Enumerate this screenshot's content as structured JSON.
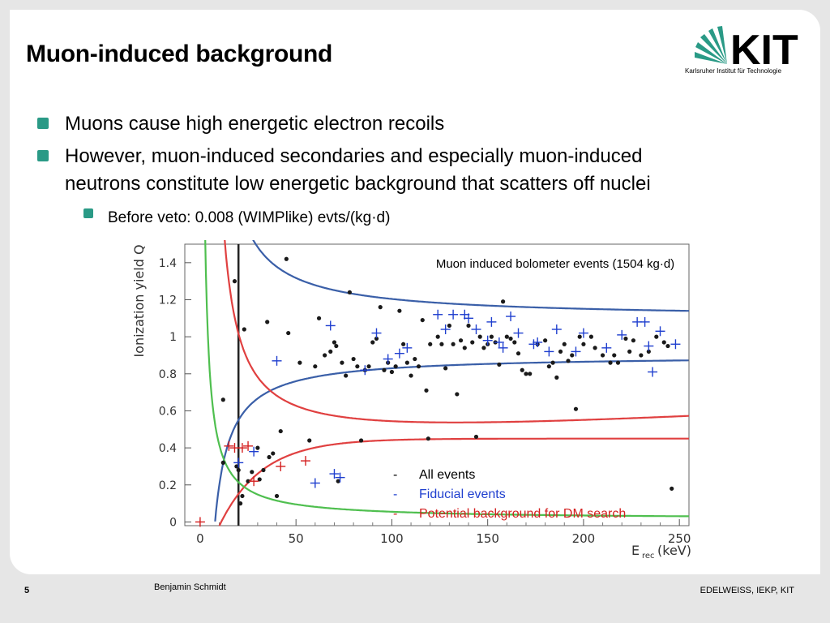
{
  "slide": {
    "title": "Muon-induced background",
    "bullets": [
      "Muons cause high energetic electron recoils",
      "However, muon-induced secondaries and especially muon-induced",
      "neutrons constitute low energetic background that scatters off nuclei"
    ],
    "sub_bullet": "Before veto: 0.008 (WIMPlike) evts/(kg·d)",
    "logo": {
      "text": "KIT",
      "subtitle": "Karlsruher Institut für Technologie",
      "color": "#2a9a86"
    },
    "footer": {
      "page": "5",
      "author": "Benjamin Schmidt",
      "affiliation": "EDELWEISS, IEKP, KIT"
    },
    "accent_color": "#2a9a86"
  },
  "chart_data": {
    "type": "scatter",
    "title": "Muon induced bolometer events (1504 kg·d)",
    "xlabel": "E",
    "xlabel_sub": "rec",
    "xlabel_unit": "(keV)",
    "ylabel": "Ionization yield Q",
    "xlim": [
      -8,
      255
    ],
    "ylim": [
      -0.02,
      1.5
    ],
    "x_ticks": [
      0,
      50,
      100,
      150,
      200,
      250
    ],
    "y_ticks": [
      0,
      0.2,
      0.4,
      0.6,
      0.8,
      1,
      1.2,
      1.4
    ],
    "y_tick_labels": [
      "0",
      "0.2",
      "0.4",
      "0.6",
      "0.8",
      "1",
      "1.2",
      "1.4"
    ],
    "threshold_x": 20,
    "legend": [
      {
        "dash": "-",
        "label": "All events",
        "color": "#000000"
      },
      {
        "dash": "-",
        "label": "Fiducial events",
        "color": "#1f3fcf"
      },
      {
        "dash": "-",
        "label": "Potential background for DM search",
        "color": "#d42020"
      }
    ],
    "curves": {
      "blue_upper": "#3a5fa8",
      "blue_lower": "#3a5fa8",
      "red_upper": "#e04040",
      "red_lower": "#e04040",
      "green": "#4fbf4f"
    },
    "series": [
      {
        "name": "All events",
        "color": "#1a1a1a",
        "marker": "dot",
        "points": [
          [
            12,
            0.66
          ],
          [
            12,
            0.32
          ],
          [
            18,
            1.3
          ],
          [
            19,
            0.3
          ],
          [
            20,
            0.28
          ],
          [
            21,
            0.1
          ],
          [
            22,
            0.14
          ],
          [
            23,
            1.04
          ],
          [
            25,
            0.22
          ],
          [
            27,
            0.27
          ],
          [
            30,
            0.4
          ],
          [
            31,
            0.23
          ],
          [
            33,
            0.28
          ],
          [
            35,
            1.08
          ],
          [
            36,
            0.35
          ],
          [
            38,
            0.37
          ],
          [
            40,
            0.14
          ],
          [
            42,
            0.49
          ],
          [
            45,
            1.42
          ],
          [
            46,
            1.02
          ],
          [
            52,
            0.86
          ],
          [
            57,
            0.44
          ],
          [
            60,
            0.84
          ],
          [
            62,
            1.1
          ],
          [
            65,
            0.9
          ],
          [
            68,
            0.92
          ],
          [
            70,
            0.97
          ],
          [
            71,
            0.95
          ],
          [
            72,
            0.22
          ],
          [
            74,
            0.86
          ],
          [
            76,
            0.79
          ],
          [
            78,
            1.24
          ],
          [
            80,
            0.88
          ],
          [
            82,
            0.84
          ],
          [
            84,
            0.44
          ],
          [
            86,
            0.82
          ],
          [
            88,
            0.84
          ],
          [
            90,
            0.97
          ],
          [
            92,
            0.99
          ],
          [
            94,
            1.16
          ],
          [
            96,
            0.82
          ],
          [
            98,
            0.86
          ],
          [
            100,
            0.81
          ],
          [
            102,
            0.84
          ],
          [
            104,
            1.14
          ],
          [
            106,
            0.96
          ],
          [
            108,
            0.86
          ],
          [
            110,
            0.79
          ],
          [
            112,
            0.88
          ],
          [
            114,
            0.84
          ],
          [
            116,
            1.09
          ],
          [
            118,
            0.71
          ],
          [
            119,
            0.45
          ],
          [
            120,
            0.96
          ],
          [
            124,
            1.0
          ],
          [
            126,
            0.96
          ],
          [
            128,
            0.83
          ],
          [
            130,
            1.06
          ],
          [
            132,
            0.96
          ],
          [
            134,
            0.69
          ],
          [
            136,
            0.98
          ],
          [
            138,
            0.94
          ],
          [
            140,
            1.06
          ],
          [
            142,
            0.97
          ],
          [
            144,
            0.46
          ],
          [
            146,
            1.0
          ],
          [
            148,
            0.94
          ],
          [
            150,
            0.96
          ],
          [
            152,
            1.0
          ],
          [
            154,
            0.97
          ],
          [
            156,
            0.85
          ],
          [
            158,
            1.19
          ],
          [
            160,
            1.0
          ],
          [
            162,
            0.99
          ],
          [
            164,
            0.97
          ],
          [
            166,
            0.91
          ],
          [
            168,
            0.82
          ],
          [
            170,
            0.8
          ],
          [
            172,
            0.8
          ],
          [
            176,
            0.96
          ],
          [
            180,
            0.98
          ],
          [
            182,
            0.84
          ],
          [
            184,
            0.86
          ],
          [
            186,
            0.78
          ],
          [
            188,
            0.92
          ],
          [
            190,
            0.96
          ],
          [
            192,
            0.87
          ],
          [
            194,
            0.9
          ],
          [
            196,
            0.61
          ],
          [
            198,
            1.0
          ],
          [
            200,
            0.96
          ],
          [
            204,
            1.0
          ],
          [
            206,
            0.94
          ],
          [
            210,
            0.9
          ],
          [
            214,
            0.86
          ],
          [
            216,
            0.9
          ],
          [
            218,
            0.86
          ],
          [
            222,
            0.99
          ],
          [
            224,
            0.92
          ],
          [
            226,
            0.98
          ],
          [
            230,
            0.9
          ],
          [
            234,
            0.92
          ],
          [
            238,
            1.0
          ],
          [
            242,
            0.97
          ],
          [
            244,
            0.95
          ],
          [
            246,
            0.18
          ]
        ]
      },
      {
        "name": "Fiducial events",
        "color": "#1f3fcf",
        "marker": "plus",
        "points": [
          [
            20,
            0.32
          ],
          [
            28,
            0.38
          ],
          [
            40,
            0.87
          ],
          [
            60,
            0.21
          ],
          [
            68,
            1.06
          ],
          [
            70,
            0.26
          ],
          [
            73,
            0.24
          ],
          [
            86,
            0.82
          ],
          [
            92,
            1.02
          ],
          [
            98,
            0.88
          ],
          [
            104,
            0.91
          ],
          [
            108,
            0.94
          ],
          [
            124,
            1.12
          ],
          [
            132,
            1.12
          ],
          [
            138,
            1.12
          ],
          [
            128,
            1.04
          ],
          [
            140,
            1.1
          ],
          [
            144,
            1.04
          ],
          [
            150,
            0.98
          ],
          [
            152,
            1.08
          ],
          [
            156,
            0.97
          ],
          [
            158,
            0.94
          ],
          [
            162,
            1.11
          ],
          [
            166,
            1.02
          ],
          [
            174,
            0.96
          ],
          [
            176,
            0.97
          ],
          [
            182,
            0.92
          ],
          [
            186,
            1.04
          ],
          [
            196,
            0.92
          ],
          [
            200,
            1.02
          ],
          [
            212,
            0.94
          ],
          [
            220,
            1.01
          ],
          [
            228,
            1.08
          ],
          [
            232,
            1.08
          ],
          [
            234,
            0.95
          ],
          [
            236,
            0.81
          ],
          [
            240,
            1.03
          ],
          [
            248,
            0.96
          ]
        ]
      },
      {
        "name": "Potential background for DM search",
        "color": "#d42020",
        "marker": "plus",
        "points": [
          [
            15,
            0.41
          ],
          [
            18,
            0.4
          ],
          [
            22,
            0.4
          ],
          [
            25,
            0.41
          ],
          [
            28,
            0.22
          ],
          [
            42,
            0.3
          ],
          [
            55,
            0.33
          ],
          [
            0,
            0.0
          ]
        ]
      }
    ]
  }
}
